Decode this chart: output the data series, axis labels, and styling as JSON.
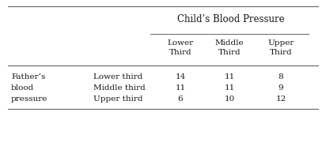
{
  "title": "Child’s Blood Pressure",
  "col_headers": [
    "Lower\nThird",
    "Middle\nThird",
    "Upper\nThird"
  ],
  "row_group_label": [
    "Father’s",
    "blood",
    "pressure"
  ],
  "row_labels": [
    "Lower third",
    "Middle third",
    "Upper third"
  ],
  "data": [
    [
      "14",
      "11",
      "8"
    ],
    [
      "11",
      "11",
      "9"
    ],
    [
      "6",
      "10",
      "12"
    ]
  ],
  "bg_color": "#ffffff",
  "text_color": "#1a1a1a",
  "font_size": 7.5
}
